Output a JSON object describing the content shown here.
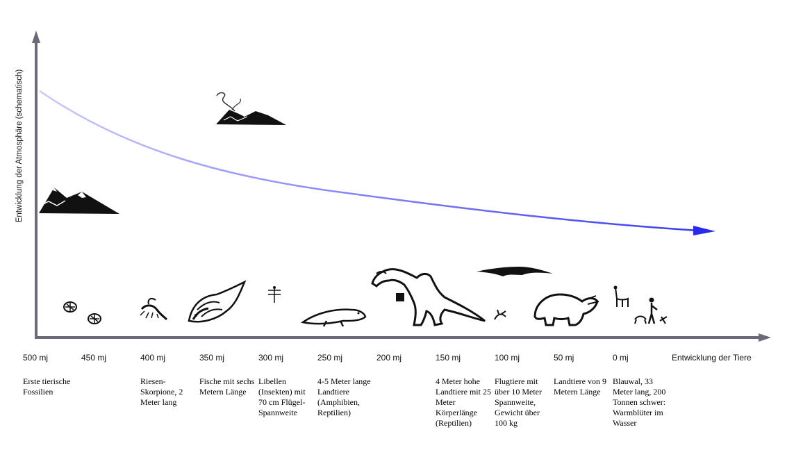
{
  "diagram": {
    "y_axis_label": "Entwicklung der Atmosphäre (schematisch)",
    "x_axis_label": "Entwicklung der Tiere",
    "ticks": [
      "500 mj",
      "450 mj",
      "400 mj",
      "350 mj",
      "300 mj",
      "250 mj",
      "200 mj",
      "150 mj",
      "100 mj",
      "50 mj",
      "0 mj"
    ],
    "descriptions": [
      "Erste tierische Fossilien",
      "",
      "Riesen-Skorpione, 2 Meter lang",
      "Fische mit sechs Metern Länge",
      "Libellen (Insekten) mit 70 cm Flügel-Spannweite",
      "4-5 Meter lange Landtiere (Amphibien, Reptilien)",
      "",
      "4 Meter hohe Landtiere mit 25 Meter Körperlänge (Reptilien)",
      "Flugtiere mit über 10 Meter Spannweite, Gewicht über 100 kg",
      "Landtiere von 9 Metern Länge",
      "Blauwal, 33 Meter lang, 200 Tonnen schwer: Warmblüter im Wasser"
    ],
    "curve_color": "#4646f0",
    "icons": [
      "fossil-icon",
      "scorpion-icon",
      "fish-icon",
      "dragonfly-icon",
      "amphibian-icon",
      "dinosaur-icon",
      "pterosaur-icon",
      "triceratops-icon",
      "llama-icon",
      "human-icon",
      "mountains-icon",
      "volcano-icon"
    ]
  }
}
